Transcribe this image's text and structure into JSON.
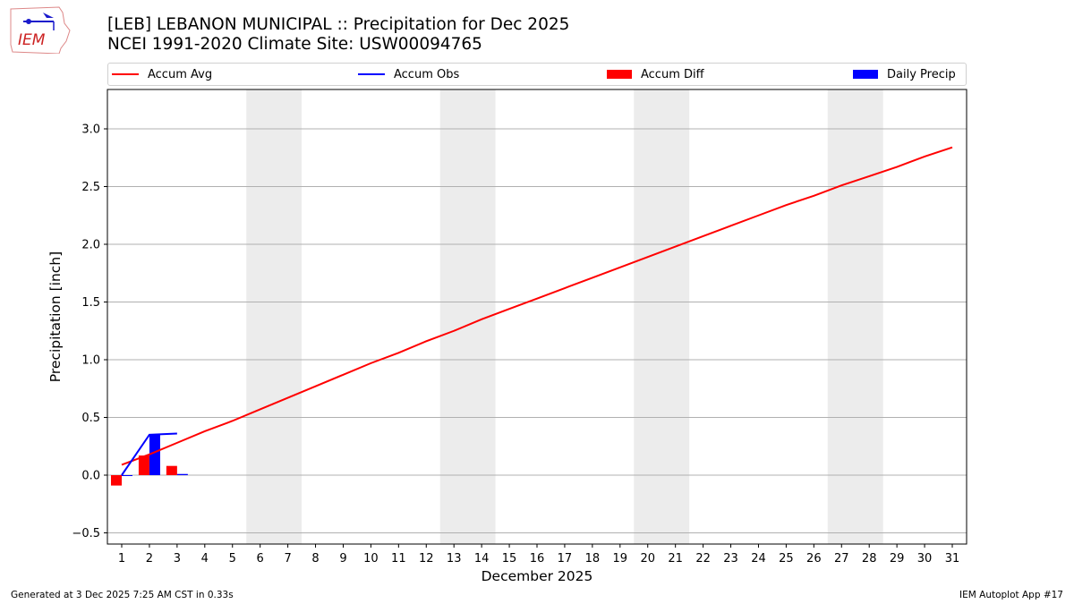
{
  "header": {
    "title_line1": "[LEB] LEBANON MUNICIPAL :: Precipitation for Dec 2025",
    "title_line2": "NCEI 1991-2020 Climate Site: USW00094765",
    "logo_text": "IEM"
  },
  "legend": [
    {
      "label": "Accum Avg",
      "kind": "line",
      "color": "#ff0000"
    },
    {
      "label": "Accum Obs",
      "kind": "line",
      "color": "#0000ff"
    },
    {
      "label": "Accum Diff",
      "kind": "box",
      "color": "#ff0000"
    },
    {
      "label": "Daily Precip",
      "kind": "box",
      "color": "#0000ff"
    }
  ],
  "footer": {
    "generated": "Generated at 3 Dec 2025 7:25 AM CST in 0.33s",
    "app": "IEM Autoplot App #17"
  },
  "chart_data": {
    "type": "line",
    "title": "[LEB] LEBANON MUNICIPAL :: Precipitation for Dec 2025",
    "subtitle": "NCEI 1991-2020 Climate Site: USW00094765",
    "xlabel": "December 2025",
    "ylabel": "Precipitation [inch]",
    "ylim": [
      -0.6,
      3.35
    ],
    "xlim": [
      0.5,
      31.5
    ],
    "yticks": [
      -0.5,
      0.0,
      0.5,
      1.0,
      1.5,
      2.0,
      2.5,
      3.0
    ],
    "ytick_labels": [
      "−0.5",
      "0.0",
      "0.5",
      "1.0",
      "1.5",
      "2.0",
      "2.5",
      "3.0"
    ],
    "x": [
      1,
      2,
      3,
      4,
      5,
      6,
      7,
      8,
      9,
      10,
      11,
      12,
      13,
      14,
      15,
      16,
      17,
      18,
      19,
      20,
      21,
      22,
      23,
      24,
      25,
      26,
      27,
      28,
      29,
      30,
      31
    ],
    "grid": "horizontal",
    "legend_position": "top",
    "weekend_shading": [
      [
        6,
        7
      ],
      [
        13,
        14
      ],
      [
        20,
        21
      ],
      [
        27,
        28
      ]
    ],
    "series": [
      {
        "name": "Accum Avg",
        "type": "line",
        "color": "#ff0000",
        "values": [
          0.09,
          0.18,
          0.28,
          0.38,
          0.47,
          0.57,
          0.67,
          0.77,
          0.87,
          0.97,
          1.06,
          1.16,
          1.25,
          1.35,
          1.44,
          1.53,
          1.62,
          1.71,
          1.8,
          1.89,
          1.98,
          2.07,
          2.16,
          2.25,
          2.34,
          2.42,
          2.51,
          2.59,
          2.67,
          2.76,
          2.84
        ]
      },
      {
        "name": "Accum Obs",
        "type": "line",
        "color": "#0000ff",
        "x": [
          1,
          2,
          3
        ],
        "values": [
          0.0,
          0.35,
          0.36
        ]
      },
      {
        "name": "Accum Diff",
        "type": "bar",
        "color": "#ff0000",
        "x": [
          1,
          2,
          3
        ],
        "values": [
          -0.09,
          0.17,
          0.08
        ]
      },
      {
        "name": "Daily Precip",
        "type": "bar",
        "color": "#0000ff",
        "x": [
          1,
          2,
          3
        ],
        "values": [
          0.0,
          0.35,
          0.01
        ]
      }
    ]
  }
}
